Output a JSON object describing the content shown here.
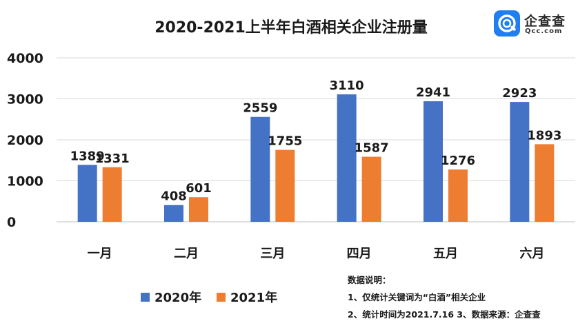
{
  "chart_data": {
    "type": "bar",
    "title": "2020-2021上半年白酒相关企业注册量",
    "categories": [
      "一月",
      "二月",
      "三月",
      "四月",
      "五月",
      "六月"
    ],
    "series": [
      {
        "name": "2020年",
        "values": [
          1389,
          408,
          2559,
          3110,
          2941,
          2923
        ],
        "color": "#4472c4"
      },
      {
        "name": "2021年",
        "values": [
          1331,
          601,
          1755,
          1587,
          1276,
          1893
        ],
        "color": "#ed7d31"
      }
    ],
    "yticks": [
      "0",
      "1000",
      "2000",
      "3000",
      "4000"
    ],
    "ylim": [
      0,
      4000
    ],
    "grid": true,
    "legend": "bottom-left"
  },
  "logo": {
    "name": "企查查",
    "domain": "Qcc.com",
    "color": "#1f7ef0"
  },
  "notes": {
    "heading": "数据说明：",
    "line1": "1、仅统计关键词为“白酒”相关企业",
    "line2": "2、统计时间为2021.7.16  3、数据来源：企查查"
  }
}
